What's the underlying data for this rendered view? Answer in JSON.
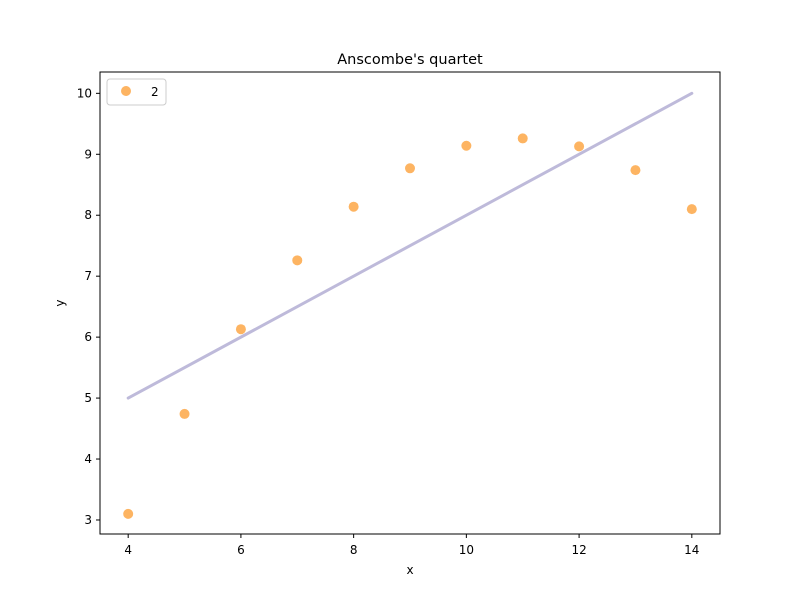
{
  "chart_data": {
    "type": "scatter",
    "title": "Anscombe's quartet",
    "xlabel": "x",
    "ylabel": "y",
    "xlim": [
      3.5,
      14.5
    ],
    "ylim": [
      2.77,
      10.35
    ],
    "xticks": [
      4,
      6,
      8,
      10,
      12,
      14
    ],
    "yticks": [
      3,
      4,
      5,
      6,
      7,
      8,
      9,
      10
    ],
    "grid": false,
    "legend_position": "top-left",
    "series": [
      {
        "name": "2",
        "kind": "scatter",
        "color": "#fdb462",
        "x": [
          4,
          5,
          6,
          7,
          8,
          9,
          10,
          11,
          12,
          13,
          14
        ],
        "y": [
          3.1,
          4.74,
          6.13,
          7.26,
          8.14,
          8.77,
          9.14,
          9.26,
          9.13,
          8.74,
          8.1
        ]
      }
    ],
    "fit_line": {
      "color": "#bebada",
      "x": [
        4,
        14
      ],
      "y": [
        5.0,
        10.0
      ]
    }
  }
}
